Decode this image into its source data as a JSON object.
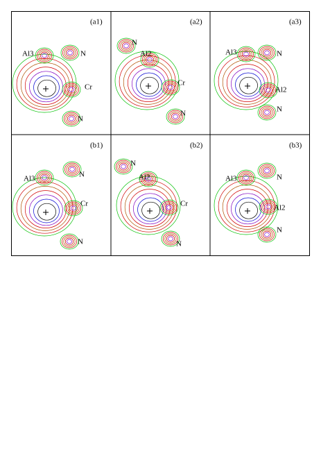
{
  "panels": [
    {
      "label": "(a1)",
      "atoms": [
        "Al3",
        "N",
        "Cr",
        "N"
      ]
    },
    {
      "label": "(a2)",
      "atoms": [
        "N",
        "Al2",
        "Cr",
        "N"
      ]
    },
    {
      "label": "(a3)",
      "atoms": [
        "Al3",
        "N",
        "Al2",
        "N"
      ]
    },
    {
      "label": "(b1)",
      "atoms": [
        "Al3",
        "N",
        "Cr",
        "N"
      ]
    },
    {
      "label": "(b2)",
      "atoms": [
        "N",
        "Al2",
        "Cr",
        "N"
      ]
    },
    {
      "label": "(b3)",
      "atoms": [
        "Al3",
        "N",
        "Al2",
        "N"
      ]
    }
  ]
}
